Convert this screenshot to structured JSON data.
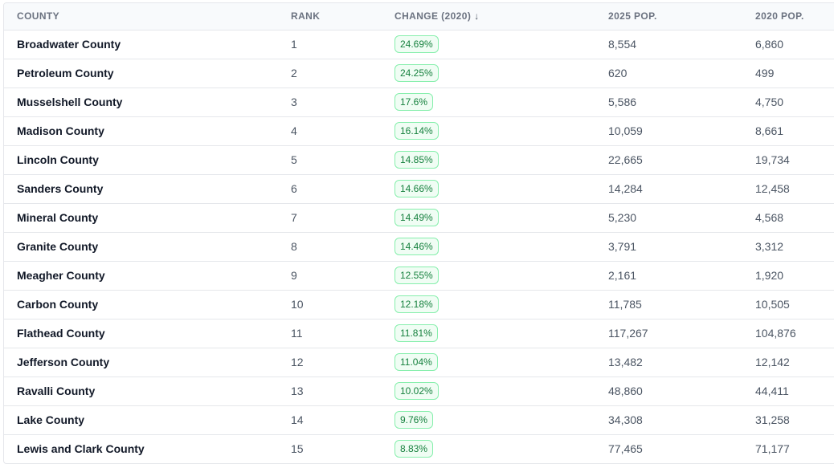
{
  "table": {
    "headers": {
      "county": "COUNTY",
      "rank": "RANK",
      "change": "CHANGE (2020)",
      "change_sort_icon": "arrow-down-icon",
      "pop2025": "2025 POP.",
      "pop2020": "2020 POP."
    },
    "rows": [
      {
        "county": "Broadwater County",
        "rank": "1",
        "change": "24.69%",
        "pop2025": "8,554",
        "pop2020": "6,860"
      },
      {
        "county": "Petroleum County",
        "rank": "2",
        "change": "24.25%",
        "pop2025": "620",
        "pop2020": "499"
      },
      {
        "county": "Musselshell County",
        "rank": "3",
        "change": "17.6%",
        "pop2025": "5,586",
        "pop2020": "4,750"
      },
      {
        "county": "Madison County",
        "rank": "4",
        "change": "16.14%",
        "pop2025": "10,059",
        "pop2020": "8,661"
      },
      {
        "county": "Lincoln County",
        "rank": "5",
        "change": "14.85%",
        "pop2025": "22,665",
        "pop2020": "19,734"
      },
      {
        "county": "Sanders County",
        "rank": "6",
        "change": "14.66%",
        "pop2025": "14,284",
        "pop2020": "12,458"
      },
      {
        "county": "Mineral County",
        "rank": "7",
        "change": "14.49%",
        "pop2025": "5,230",
        "pop2020": "4,568"
      },
      {
        "county": "Granite County",
        "rank": "8",
        "change": "14.46%",
        "pop2025": "3,791",
        "pop2020": "3,312"
      },
      {
        "county": "Meagher County",
        "rank": "9",
        "change": "12.55%",
        "pop2025": "2,161",
        "pop2020": "1,920"
      },
      {
        "county": "Carbon County",
        "rank": "10",
        "change": "12.18%",
        "pop2025": "11,785",
        "pop2020": "10,505"
      },
      {
        "county": "Flathead County",
        "rank": "11",
        "change": "11.81%",
        "pop2025": "117,267",
        "pop2020": "104,876"
      },
      {
        "county": "Jefferson County",
        "rank": "12",
        "change": "11.04%",
        "pop2025": "13,482",
        "pop2020": "12,142"
      },
      {
        "county": "Ravalli County",
        "rank": "13",
        "change": "10.02%",
        "pop2025": "48,860",
        "pop2020": "44,411"
      },
      {
        "county": "Lake County",
        "rank": "14",
        "change": "9.76%",
        "pop2025": "34,308",
        "pop2020": "31,258"
      },
      {
        "county": "Lewis and Clark County",
        "rank": "15",
        "change": "8.83%",
        "pop2025": "77,465",
        "pop2020": "71,177"
      }
    ]
  },
  "colors": {
    "badge_border": "#86efac",
    "badge_background": "#f0fdf4",
    "badge_text": "#15803d",
    "header_background": "#f8fafc",
    "row_divider": "#e5e7eb"
  }
}
